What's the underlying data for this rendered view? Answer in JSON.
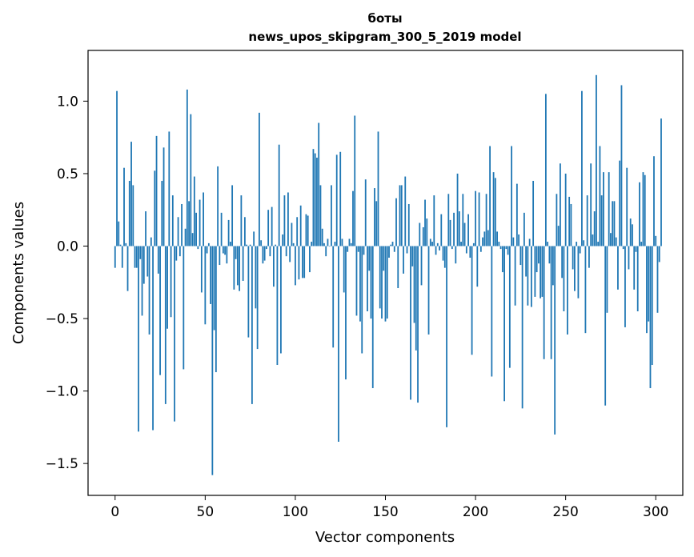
{
  "chart_data": {
    "type": "bar",
    "title": "боты",
    "subtitle": "news_upos_skipgram_300_5_2019 model",
    "xlabel": "Vector components",
    "ylabel": "Components values",
    "xlim": [
      -15,
      315
    ],
    "ylim": [
      -1.72,
      1.35
    ],
    "xticks": [
      0,
      50,
      100,
      150,
      200,
      250,
      300
    ],
    "xtick_labels": [
      "0",
      "50",
      "100",
      "150",
      "200",
      "250",
      "300"
    ],
    "yticks": [
      1.0,
      0.5,
      0.0,
      -0.5,
      -1.0,
      -1.5
    ],
    "ytick_labels": [
      "1.0",
      "0.5",
      "0.0",
      "−0.5",
      "−1.0",
      "−1.5"
    ],
    "grid": false,
    "bar_color": "#1f77b4",
    "values": [
      -0.15,
      1.07,
      0.17,
      0.01,
      -0.15,
      0.54,
      0.02,
      -0.31,
      0.45,
      0.72,
      0.42,
      -0.15,
      -0.15,
      -1.28,
      -0.09,
      -0.48,
      -0.26,
      0.24,
      -0.21,
      -0.61,
      0.06,
      -1.27,
      0.52,
      0.76,
      -0.19,
      -0.89,
      0.45,
      0.68,
      -1.09,
      -0.57,
      0.79,
      -0.49,
      0.35,
      -1.21,
      -0.1,
      0.2,
      -0.07,
      0.29,
      -0.85,
      0.12,
      1.08,
      0.31,
      0.91,
      0.09,
      0.48,
      0.23,
      -0.02,
      0.32,
      -0.32,
      0.37,
      -0.54,
      -0.05,
      0.02,
      -0.4,
      -1.58,
      -0.58,
      -0.87,
      0.55,
      -0.13,
      0.23,
      -0.05,
      -0.06,
      -0.12,
      0.18,
      0.03,
      0.42,
      -0.3,
      -0.09,
      -0.27,
      -0.31,
      0.35,
      -0.24,
      0.2,
      0.01,
      -0.63,
      0.01,
      -1.09,
      0.1,
      -0.43,
      -0.71,
      0.92,
      0.04,
      -0.12,
      -0.1,
      -0.02,
      0.25,
      -0.07,
      0.27,
      -0.28,
      0.01,
      -0.82,
      0.7,
      -0.74,
      0.08,
      0.35,
      -0.07,
      0.37,
      -0.11,
      0.16,
      0.02,
      -0.27,
      0.2,
      -0.23,
      0.28,
      -0.22,
      -0.22,
      0.22,
      0.21,
      -0.18,
      0.03,
      0.67,
      0.64,
      0.61,
      0.85,
      0.42,
      0.12,
      0.02,
      -0.07,
      0.05,
      0.0,
      0.42,
      -0.7,
      0.03,
      0.63,
      -1.35,
      0.65,
      0.05,
      -0.32,
      -0.92,
      -0.04,
      0.05,
      0.02,
      0.38,
      0.9,
      -0.48,
      -0.04,
      -0.52,
      -0.74,
      -0.06,
      0.46,
      -0.45,
      -0.17,
      -0.5,
      -0.98,
      0.4,
      0.31,
      0.79,
      -0.43,
      -0.5,
      -0.17,
      -0.52,
      -0.5,
      -0.08,
      0.01,
      0.03,
      -0.04,
      0.33,
      -0.29,
      0.42,
      0.42,
      -0.19,
      0.48,
      -0.05,
      0.29,
      -1.06,
      -0.14,
      -0.53,
      -0.72,
      -1.08,
      0.16,
      -0.27,
      0.13,
      0.32,
      0.19,
      -0.61,
      0.05,
      0.03,
      0.35,
      -0.06,
      0.02,
      -0.03,
      0.22,
      -0.1,
      -0.15,
      -1.25,
      0.36,
      0.18,
      -0.02,
      0.23,
      -0.12,
      0.5,
      0.24,
      0.03,
      0.36,
      0.16,
      -0.05,
      0.22,
      -0.08,
      -0.75,
      0.02,
      0.38,
      -0.28,
      0.37,
      -0.04,
      0.06,
      0.1,
      0.36,
      0.11,
      0.69,
      -0.9,
      0.51,
      0.47,
      0.1,
      0.03,
      -0.02,
      -0.18,
      -1.07,
      -0.02,
      -0.06,
      -0.84,
      0.69,
      0.06,
      -0.41,
      0.43,
      0.08,
      -0.13,
      -1.12,
      0.23,
      -0.21,
      -0.41,
      0.05,
      -0.42,
      0.45,
      -0.35,
      -0.18,
      -0.12,
      -0.36,
      -0.35,
      -0.78,
      1.05,
      0.03,
      -0.12,
      -0.78,
      -0.27,
      -1.3,
      0.36,
      0.14,
      0.57,
      -0.22,
      -0.45,
      0.5,
      -0.61,
      0.34,
      0.29,
      -0.16,
      -0.31,
      0.03,
      -0.36,
      -0.05,
      1.07,
      0.04,
      -0.6,
      0.35,
      -0.15,
      0.57,
      0.08,
      0.24,
      1.18,
      0.03,
      0.69,
      0.35,
      0.51,
      -1.1,
      -0.46,
      0.51,
      0.09,
      0.31,
      0.31,
      0.06,
      -0.3,
      0.59,
      1.11,
      -0.02,
      -0.56,
      0.54,
      -0.16,
      0.19,
      0.15,
      -0.3,
      -0.04,
      -0.45,
      0.44,
      0.03,
      0.51,
      0.49,
      -0.6,
      -0.52,
      -0.98,
      -0.82,
      0.62,
      0.07,
      -0.46,
      -0.11,
      0.88
    ]
  }
}
